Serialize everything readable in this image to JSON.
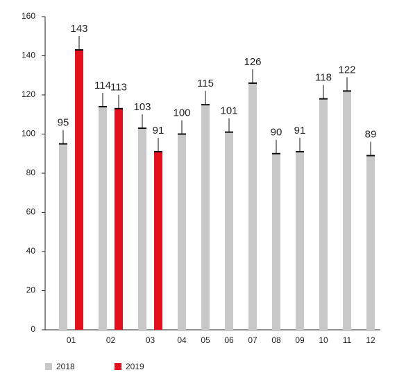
{
  "chart_data": {
    "type": "bar",
    "categories": [
      "01",
      "02",
      "03",
      "04",
      "05",
      "06",
      "07",
      "08",
      "09",
      "10",
      "11",
      "12"
    ],
    "series": [
      {
        "name": "2018",
        "color": "#c8c8c8",
        "values": [
          95,
          114,
          103,
          100,
          115,
          101,
          126,
          90,
          91,
          118,
          122,
          89
        ]
      },
      {
        "name": "2019",
        "color": "#e3101e",
        "values": [
          143,
          113,
          91,
          null,
          null,
          null,
          null,
          null,
          null,
          null,
          null,
          null
        ]
      }
    ],
    "ylim": [
      0,
      160
    ],
    "yticks": [
      0,
      20,
      40,
      60,
      80,
      100,
      120,
      140,
      160
    ],
    "grid": false,
    "legend": "bottom-left"
  }
}
